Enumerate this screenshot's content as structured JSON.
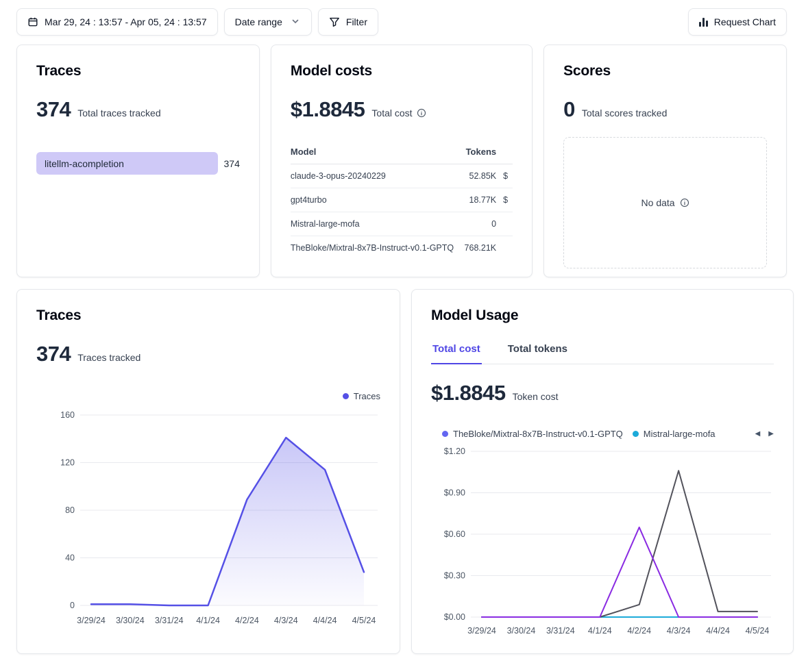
{
  "topbar": {
    "date_range_value": "Mar 29, 24 : 13:57 - Apr 05, 24 : 13:57",
    "date_range_label": "Date range",
    "filter_label": "Filter",
    "request_chart_label": "Request Chart"
  },
  "traces_card": {
    "title": "Traces",
    "total": "374",
    "subtitle": "Total traces tracked",
    "bars": [
      {
        "label": "litellm-acompletion",
        "value": "374",
        "fill_color": "#cfc9f7"
      }
    ]
  },
  "model_costs_card": {
    "title": "Model costs",
    "total": "$1.8845",
    "subtitle": "Total cost",
    "table": {
      "col_model": "Model",
      "col_tokens": "Tokens",
      "rows": [
        {
          "model": "claude-3-opus-20240229",
          "tokens": "52.85K",
          "usd_clipped": "$"
        },
        {
          "model": "gpt4turbo",
          "tokens": "18.77K",
          "usd_clipped": "$"
        },
        {
          "model": "Mistral-large-mofa",
          "tokens": "0",
          "usd_clipped": ""
        },
        {
          "model": "TheBloke/Mixtral-8x7B-Instruct-v0.1-GPTQ",
          "tokens": "768.21K",
          "usd_clipped": ""
        }
      ]
    }
  },
  "scores_card": {
    "title": "Scores",
    "total": "0",
    "subtitle": "Total scores tracked",
    "empty_text": "No data"
  },
  "traces_chart_card": {
    "title": "Traces",
    "total": "374",
    "subtitle": "Traces tracked"
  },
  "model_usage_card": {
    "title": "Model Usage",
    "tabs": [
      {
        "label": "Total cost"
      },
      {
        "label": "Total tokens"
      }
    ],
    "total": "$1.8845",
    "subtitle": "Token cost",
    "legend_nav": {
      "prev": "◀",
      "next": "▶"
    }
  },
  "colors": {
    "accent": "#4f46e5",
    "traces_line": "#5550e6",
    "indigo_series": "#6366f1",
    "teal_series": "#1caad9",
    "gray_series": "#52525b",
    "violet_series": "#8a2be2",
    "grid": "#e8e9ee"
  },
  "chart_data": [
    {
      "id": "traces_over_time",
      "type": "area",
      "title": "Traces",
      "categories": [
        "3/29/24",
        "3/30/24",
        "3/31/24",
        "4/1/24",
        "4/2/24",
        "4/3/24",
        "4/4/24",
        "4/5/24"
      ],
      "series": [
        {
          "name": "Traces",
          "color": "#5550e6",
          "fill": true,
          "values": [
            1,
            1,
            0,
            0,
            89,
            141,
            114,
            28
          ]
        }
      ],
      "ylim": [
        0,
        160
      ],
      "yticks": [
        {
          "value": 0,
          "label": "0"
        },
        {
          "value": 40,
          "label": "40"
        },
        {
          "value": 80,
          "label": "80"
        },
        {
          "value": 120,
          "label": "120"
        },
        {
          "value": 160,
          "label": "160"
        }
      ],
      "legend": [
        {
          "label": "Traces",
          "color": "#5550e6"
        }
      ],
      "legend_position": "top-right",
      "grid": true
    },
    {
      "id": "model_usage_cost",
      "type": "line",
      "title": "Model Usage - Total cost ($)",
      "categories": [
        "3/29/24",
        "3/30/24",
        "3/31/24",
        "4/1/24",
        "4/2/24",
        "4/3/24",
        "4/4/24",
        "4/5/24"
      ],
      "series": [
        {
          "name": "TheBloke/Mixtral-8x7B-Instruct-v0.1-GPTQ",
          "color": "#6366f1",
          "values": [
            0,
            0,
            0,
            0,
            0,
            0,
            0,
            0
          ]
        },
        {
          "name": "Mistral-large-mofa",
          "color": "#1caad9",
          "values": [
            0,
            0,
            0,
            0,
            0,
            0,
            0,
            0
          ]
        },
        {
          "name": "unlabeled-gray-series",
          "color": "#52525b",
          "values": [
            0,
            0,
            0,
            0,
            0.09,
            1.06,
            0.04,
            0.04
          ]
        },
        {
          "name": "unlabeled-violet-series",
          "color": "#8a2be2",
          "values": [
            0,
            0,
            0,
            0,
            0.65,
            0,
            0,
            0
          ]
        }
      ],
      "ylim": [
        0,
        1.2
      ],
      "yticks": [
        {
          "value": 0,
          "label": "$0.00"
        },
        {
          "value": 0.3,
          "label": "$0.30"
        },
        {
          "value": 0.6,
          "label": "$0.60"
        },
        {
          "value": 0.9,
          "label": "$0.90"
        },
        {
          "value": 1.2,
          "label": "$1.20"
        }
      ],
      "legend": [
        {
          "label": "TheBloke/Mixtral-8x7B-Instruct-v0.1-GPTQ",
          "color": "#6366f1"
        },
        {
          "label": "Mistral-large-mofa",
          "color": "#1caad9",
          "truncated": true
        }
      ],
      "legend_position": "top",
      "legend_pagination": true,
      "grid": true
    }
  ]
}
